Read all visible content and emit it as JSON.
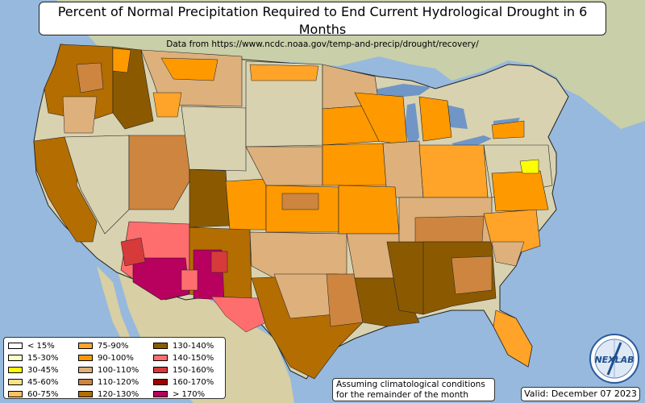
{
  "title": {
    "main": "Percent of Normal Precipitation Required to End Current Hydrological Drought in 6 Months",
    "subtitle": "Data from https://www.ncdc.noaa.gov/temp-and-precip/drought/recovery/"
  },
  "legend": {
    "items": [
      {
        "label": "< 15%",
        "color": "#ffffff"
      },
      {
        "label": "15-30%",
        "color": "#ffffcc"
      },
      {
        "label": "30-45%",
        "color": "#ffff00"
      },
      {
        "label": "45-60%",
        "color": "#ffe08a"
      },
      {
        "label": "60-75%",
        "color": "#ffc061"
      },
      {
        "label": "75-90%",
        "color": "#ffa428"
      },
      {
        "label": "90-100%",
        "color": "#ff9900"
      },
      {
        "label": "100-110%",
        "color": "#ddb07c"
      },
      {
        "label": "110-120%",
        "color": "#cd853f"
      },
      {
        "label": "120-130%",
        "color": "#b36d00"
      },
      {
        "label": "130-140%",
        "color": "#8b5a00"
      },
      {
        "label": "140-150%",
        "color": "#ff6e6e"
      },
      {
        "label": "150-160%",
        "color": "#d63a3a"
      },
      {
        "label": "160-170%",
        "color": "#a00000"
      },
      {
        "label": "> 170%",
        "color": "#b8005e"
      }
    ]
  },
  "note": {
    "line1": "Assuming climatological conditions",
    "line2": "for the remainder of the month"
  },
  "valid": "Valid: December 07 2023",
  "logo": {
    "text": "NEXLAB",
    "icon": "nexlab-logo-icon"
  },
  "colors": {
    "ocean": "#97b9dd",
    "land": "#d9d2b0",
    "mexico": "#d8cfa4",
    "canada": "#c9cfa8",
    "lake": "#6f96c7"
  }
}
